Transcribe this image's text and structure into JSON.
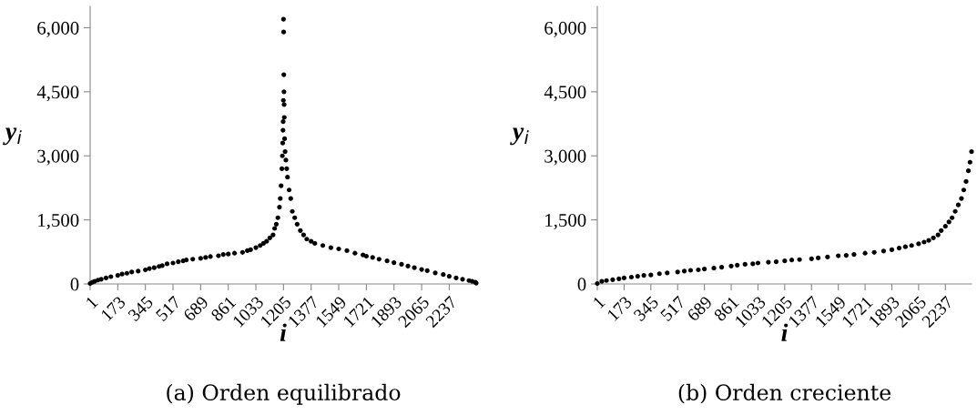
{
  "chart_data": [
    {
      "type": "scatter",
      "title": "(a) Orden equilibrado",
      "xlim": [
        1,
        2405
      ],
      "xticks": [
        1,
        173,
        345,
        517,
        689,
        861,
        1033,
        1205,
        1377,
        1549,
        1721,
        1893,
        2065,
        2237
      ],
      "ylim": [
        0,
        6500
      ],
      "yticks": [
        0,
        {
          "value": 1500,
          "label": "1,500"
        },
        {
          "value": 3000,
          "label": "3,000"
        },
        {
          "value": 4500,
          "label": "4,500"
        },
        {
          "value": 6000,
          "label": "6,000"
        }
      ],
      "xlabel": "i",
      "ylabel": "y$_{i}$",
      "color": "#000000",
      "marker": "circle",
      "grid": false,
      "legend": false,
      "x": [
        1,
        15,
        30,
        50,
        70,
        100,
        130,
        173,
        200,
        230,
        260,
        300,
        345,
        370,
        400,
        430,
        450,
        480,
        517,
        550,
        580,
        600,
        640,
        689,
        720,
        750,
        800,
        830,
        861,
        900,
        950,
        980,
        1000,
        1033,
        1060,
        1080,
        1100,
        1120,
        1140,
        1150,
        1160,
        1170,
        1180,
        1185,
        1190,
        1195,
        1198,
        1200,
        1202,
        1203,
        1204,
        1205,
        1206,
        1207,
        1208,
        1209,
        1210,
        1212,
        1215,
        1220,
        1225,
        1230,
        1240,
        1250,
        1260,
        1275,
        1290,
        1310,
        1330,
        1350,
        1377,
        1400,
        1450,
        1500,
        1549,
        1600,
        1650,
        1700,
        1721,
        1760,
        1800,
        1850,
        1893,
        1940,
        1980,
        2020,
        2065,
        2100,
        2150,
        2200,
        2237,
        2280,
        2320,
        2360,
        2380,
        2400,
        2405
      ],
      "values": [
        10,
        40,
        60,
        90,
        110,
        140,
        170,
        200,
        230,
        250,
        280,
        300,
        330,
        360,
        380,
        410,
        430,
        470,
        490,
        520,
        540,
        560,
        580,
        600,
        620,
        640,
        660,
        690,
        700,
        720,
        740,
        780,
        800,
        850,
        900,
        950,
        1000,
        1080,
        1150,
        1300,
        1400,
        1550,
        1800,
        2000,
        2300,
        2700,
        3000,
        3300,
        3600,
        3800,
        4300,
        6200,
        5900,
        4900,
        4500,
        4200,
        3900,
        3400,
        3100,
        2900,
        2700,
        2500,
        2200,
        2000,
        1700,
        1550,
        1400,
        1250,
        1150,
        1050,
        1000,
        950,
        900,
        850,
        820,
        780,
        720,
        680,
        650,
        620,
        580,
        540,
        500,
        460,
        420,
        380,
        340,
        310,
        260,
        220,
        180,
        140,
        110,
        80,
        60,
        40,
        20
      ]
    },
    {
      "type": "scatter",
      "title": "(b) Orden creciente",
      "xlim": [
        1,
        2405
      ],
      "xticks": [
        1,
        173,
        345,
        517,
        689,
        861,
        1033,
        1205,
        1377,
        1549,
        1721,
        1893,
        2065,
        2237
      ],
      "ylim": [
        0,
        6500
      ],
      "yticks": [
        0,
        {
          "value": 1500,
          "label": "1,500"
        },
        {
          "value": 3000,
          "label": "3,000"
        },
        {
          "value": 4500,
          "label": "4,500"
        },
        {
          "value": 6000,
          "label": "6,000"
        }
      ],
      "xlabel": "i",
      "ylabel": "y$_{i}$",
      "color": "#000000",
      "marker": "circle",
      "grid": false,
      "legend": false,
      "x": [
        1,
        30,
        60,
        100,
        140,
        173,
        220,
        260,
        300,
        345,
        400,
        450,
        517,
        560,
        600,
        650,
        689,
        750,
        800,
        861,
        900,
        950,
        1000,
        1033,
        1100,
        1150,
        1205,
        1250,
        1300,
        1377,
        1420,
        1480,
        1549,
        1600,
        1650,
        1721,
        1780,
        1840,
        1893,
        1940,
        1980,
        2020,
        2065,
        2100,
        2130,
        2160,
        2190,
        2210,
        2237,
        2260,
        2280,
        2300,
        2320,
        2340,
        2355,
        2370,
        2385,
        2395,
        2405
      ],
      "values": [
        10,
        60,
        80,
        100,
        120,
        140,
        160,
        180,
        200,
        210,
        240,
        260,
        280,
        300,
        320,
        330,
        350,
        370,
        390,
        420,
        440,
        460,
        470,
        490,
        510,
        520,
        540,
        560,
        570,
        590,
        610,
        630,
        660,
        670,
        690,
        720,
        740,
        770,
        800,
        840,
        870,
        900,
        940,
        980,
        1020,
        1080,
        1150,
        1250,
        1350,
        1450,
        1550,
        1700,
        1850,
        2000,
        2200,
        2400,
        2650,
        2850,
        3100
      ]
    }
  ]
}
